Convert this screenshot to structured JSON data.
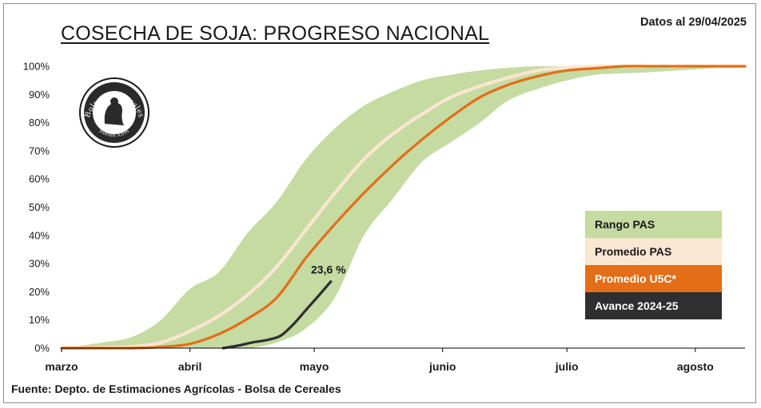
{
  "header": {
    "title": "COSECHA DE SOJA: PROGRESO NACIONAL",
    "date_label": "Datos al 29/04/2025"
  },
  "footer": {
    "source": "Fuente: Depto. de Estimaciones Agrícolas - Bolsa de Cereales"
  },
  "logo": {
    "text": "Bolsa de Cereales",
    "subtext": "Buenos Aires"
  },
  "colors": {
    "range": "#c5dba2",
    "avg_pas": "#fbe6d1",
    "avg_5c": "#e36e17",
    "current": "#2f2f2f"
  },
  "chart_data": {
    "type": "area",
    "title": "COSECHA DE SOJA: PROGRESO NACIONAL",
    "x_unit": "days since 1 March (2025)",
    "x_ticks": [
      {
        "label": "marzo",
        "x": 0
      },
      {
        "label": "abril",
        "x": 31
      },
      {
        "label": "mayo",
        "x": 61
      },
      {
        "label": "junio",
        "x": 92
      },
      {
        "label": "julio",
        "x": 122
      },
      {
        "label": "agosto",
        "x": 153
      }
    ],
    "xlim": [
      0,
      165
    ],
    "ylim": [
      0,
      100
    ],
    "y_ticks": [
      "0%",
      "10%",
      "20%",
      "30%",
      "40%",
      "50%",
      "60%",
      "70%",
      "80%",
      "90%",
      "100%"
    ],
    "legend_position": "right",
    "grid": false,
    "series": [
      {
        "name": "Rango PAS",
        "kind": "band",
        "x": [
          0,
          10,
          17,
          24,
          31,
          38,
          45,
          52,
          59,
          66,
          73,
          80,
          87,
          94,
          101,
          108,
          115,
          122,
          129,
          136,
          143,
          165
        ],
        "low": [
          0,
          0,
          0,
          0,
          0,
          0,
          0,
          2,
          7,
          18,
          40,
          53,
          66,
          73,
          80,
          88,
          92,
          95,
          97,
          97.5,
          98,
          100
        ],
        "high": [
          0,
          2,
          4,
          10,
          21,
          27,
          41,
          52,
          67,
          78,
          86,
          91,
          95,
          97,
          98.5,
          99.5,
          100,
          100,
          100,
          100,
          100,
          100
        ]
      },
      {
        "name": "Promedio PAS",
        "kind": "line",
        "x": [
          0,
          10,
          17,
          24,
          31,
          38,
          45,
          52,
          59,
          66,
          73,
          80,
          87,
          94,
          101,
          108,
          115,
          122,
          129,
          136,
          143,
          165
        ],
        "y": [
          0,
          0.2,
          0.5,
          2,
          6,
          11.5,
          19,
          29,
          42,
          55,
          67,
          76,
          83,
          89,
          93,
          96,
          98.5,
          99.5,
          100,
          100,
          100,
          100
        ]
      },
      {
        "name": "Promedio  U5C*",
        "kind": "line",
        "x": [
          0,
          10,
          17,
          24,
          31,
          38,
          45,
          52,
          59,
          66,
          73,
          80,
          87,
          94,
          101,
          108,
          115,
          122,
          129,
          136,
          143,
          165
        ],
        "y": [
          0,
          0,
          0,
          0.4,
          1.5,
          5,
          10.5,
          18,
          32,
          44,
          55,
          65,
          74,
          82,
          89,
          93.5,
          96.5,
          98.5,
          99.3,
          100,
          100,
          100
        ]
      },
      {
        "name": "Avance 2024-25",
        "kind": "line",
        "x": [
          39,
          43,
          46,
          50,
          53,
          56,
          59,
          62,
          65
        ],
        "y": [
          0,
          1,
          2,
          3,
          4.5,
          8.5,
          13.5,
          18.5,
          23.6
        ]
      }
    ],
    "annotations": [
      {
        "text": "23,6 %",
        "x": 65,
        "y": 23.6
      }
    ]
  },
  "legend": [
    {
      "label": "Rango PAS",
      "bg": "#c5dba2",
      "fg": "#1a1a1a"
    },
    {
      "label": "Promedio PAS",
      "bg": "#fbe6d1",
      "fg": "#1a1a1a"
    },
    {
      "label": "Promedio  U5C*",
      "bg": "#e36e17",
      "fg": "#ffffff"
    },
    {
      "label": "Avance 2024-25",
      "bg": "#2f2f2f",
      "fg": "#ffffff"
    }
  ]
}
